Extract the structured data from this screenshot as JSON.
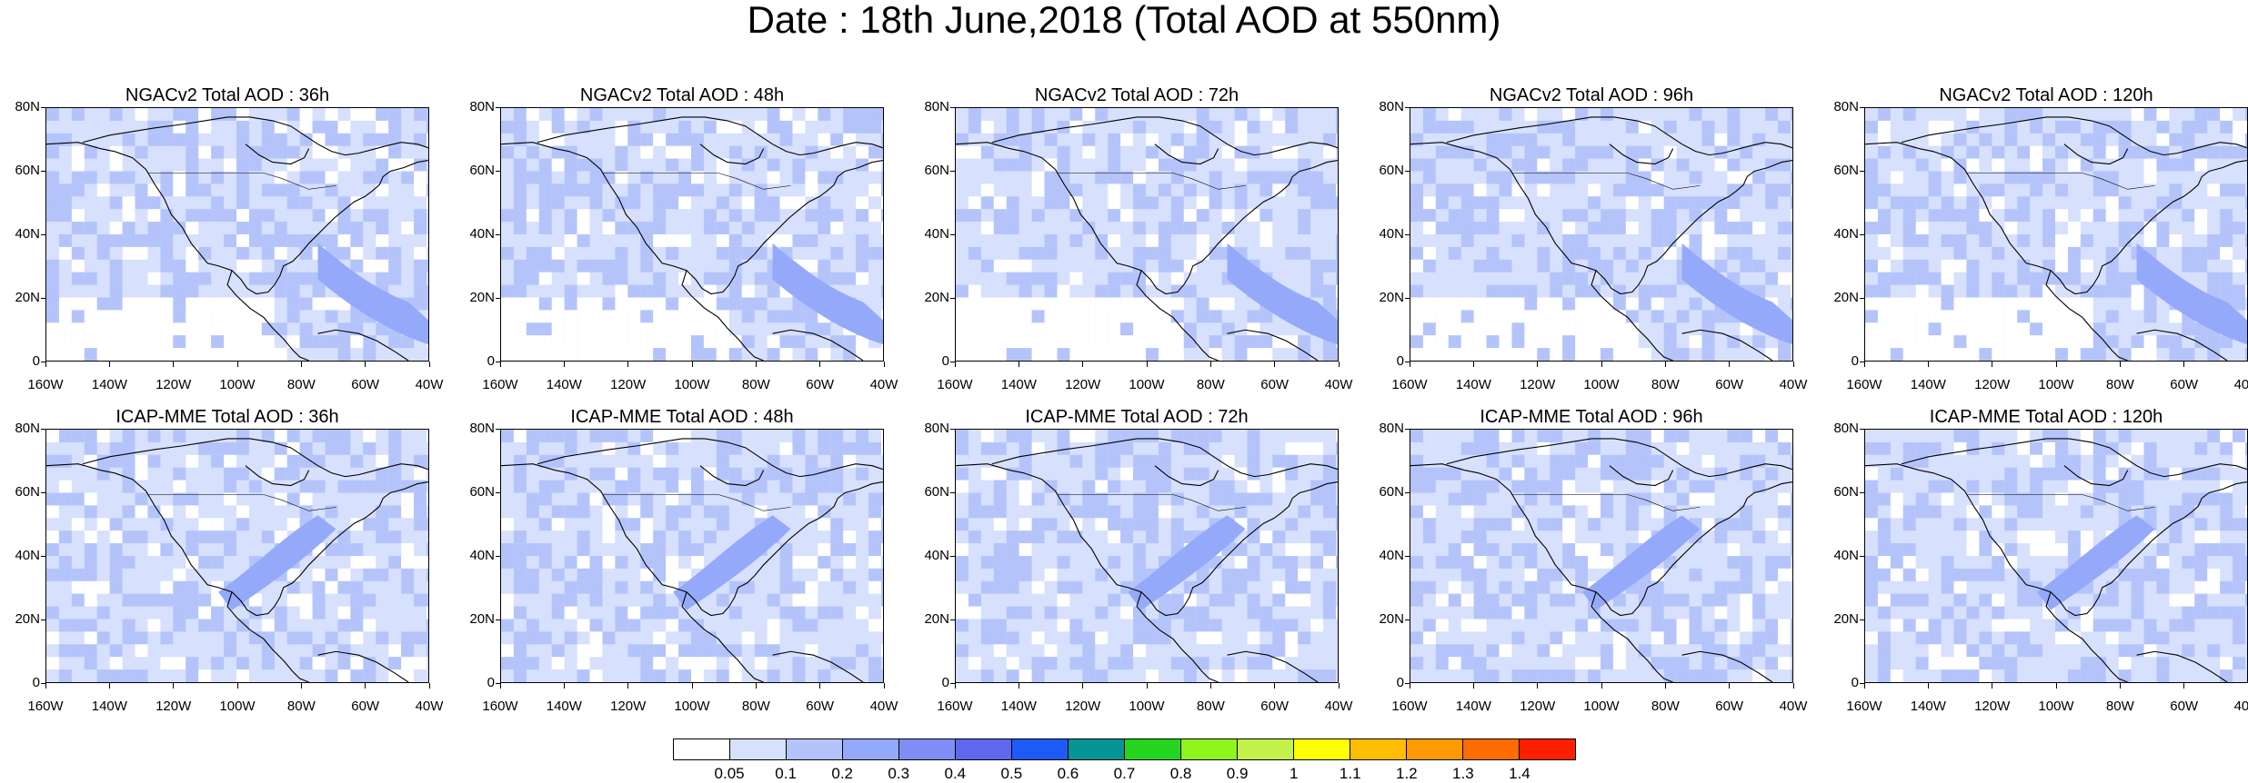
{
  "title": "Date : 18th June,2018 (Total AOD at 550nm)",
  "chart_data": {
    "type": "heatmap",
    "title": "Date : 18th June,2018 (Total AOD at 550nm)",
    "rows": [
      "NGACv2",
      "ICAP-MME"
    ],
    "columns": [
      "36h",
      "48h",
      "72h",
      "96h",
      "120h"
    ],
    "panels": [
      {
        "title": "NGACv2 Total AOD : 36h",
        "model": "NGACv2",
        "lead": "36h"
      },
      {
        "title": "NGACv2 Total AOD : 48h",
        "model": "NGACv2",
        "lead": "48h"
      },
      {
        "title": "NGACv2 Total AOD : 72h",
        "model": "NGACv2",
        "lead": "72h"
      },
      {
        "title": "NGACv2 Total AOD : 96h",
        "model": "NGACv2",
        "lead": "96h"
      },
      {
        "title": "NGACv2 Total AOD : 120h",
        "model": "NGACv2",
        "lead": "120h"
      },
      {
        "title": "ICAP-MME Total AOD : 36h",
        "model": "ICAP-MME",
        "lead": "36h"
      },
      {
        "title": "ICAP-MME Total AOD : 48h",
        "model": "ICAP-MME",
        "lead": "48h"
      },
      {
        "title": "ICAP-MME Total AOD : 72h",
        "model": "ICAP-MME",
        "lead": "72h"
      },
      {
        "title": "ICAP-MME Total AOD : 96h",
        "model": "ICAP-MME",
        "lead": "96h"
      },
      {
        "title": "ICAP-MME Total AOD : 120h",
        "model": "ICAP-MME",
        "lead": "120h"
      }
    ],
    "y_tick_labels": [
      "0",
      "20N",
      "40N",
      "60N",
      "80N"
    ],
    "y_tick_values": [
      0,
      20,
      40,
      60,
      80
    ],
    "x_tick_labels": [
      "160W",
      "140W",
      "120W",
      "100W",
      "80W",
      "60W",
      "40W"
    ],
    "x_tick_values": [
      -160,
      -140,
      -120,
      -100,
      -80,
      -60,
      -40
    ],
    "xlim": [
      -160,
      -40
    ],
    "ylim": [
      0,
      80
    ],
    "colorbar": {
      "levels": [
        "0.05",
        "0.1",
        "0.2",
        "0.3",
        "0.4",
        "0.5",
        "0.6",
        "0.7",
        "0.8",
        "0.9",
        "1",
        "1.1",
        "1.2",
        "1.3",
        "1.4"
      ],
      "colors": [
        "#ffffff",
        "#d7e0fc",
        "#b4c4fb",
        "#94a9fa",
        "#7f8ef7",
        "#5f67ee",
        "#1c5bf5",
        "#069494",
        "#24d61f",
        "#8ef51a",
        "#c2f24a",
        "#ffff00",
        "#ffbe00",
        "#ff9b00",
        "#ff6c00",
        "#ff1f00"
      ]
    }
  }
}
